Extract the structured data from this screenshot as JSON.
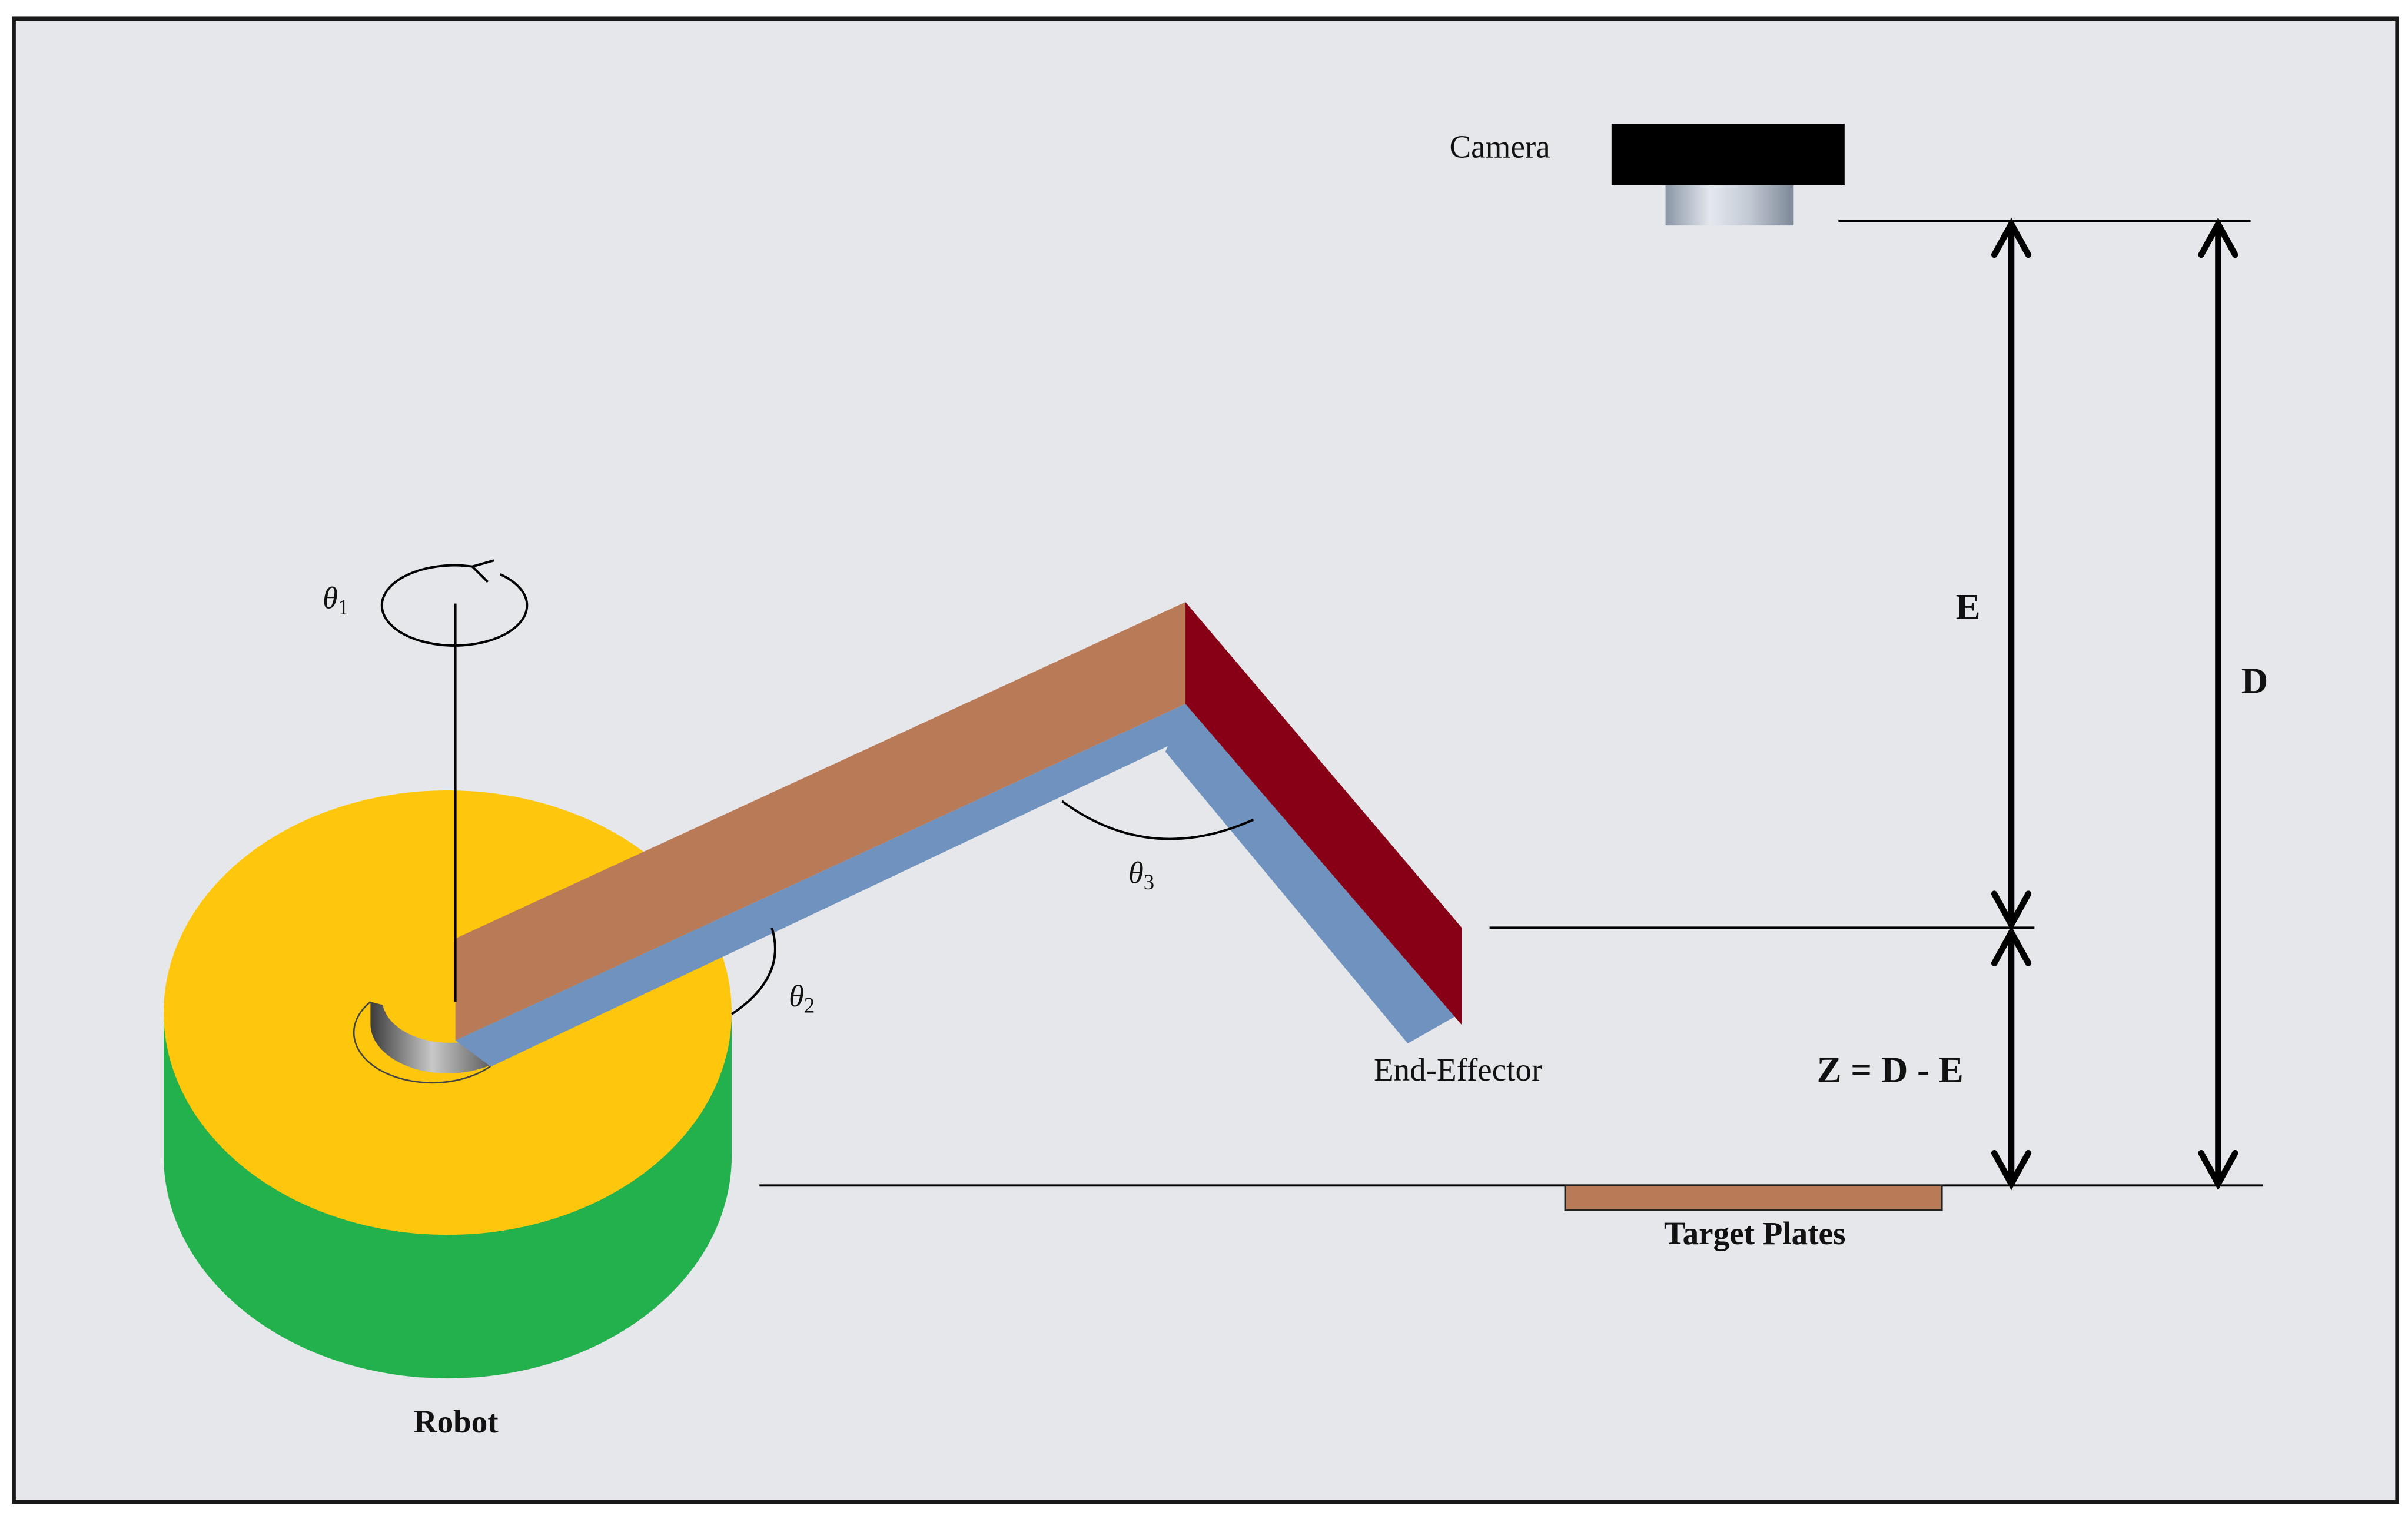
{
  "labels": {
    "camera": "Camera",
    "end_effector": "End-Effector",
    "robot": "Robot",
    "target_plates": "Target Plates",
    "dim_e": "E",
    "dim_d": "D",
    "formula": "Z = D - E",
    "theta1": {
      "symbol": "θ",
      "sub": "1"
    },
    "theta2": {
      "symbol": "θ",
      "sub": "2"
    },
    "theta3": {
      "symbol": "θ",
      "sub": "3"
    }
  },
  "colors": {
    "background": "#e6e7ea",
    "frame": "#1a1a1a",
    "base_top": "#fec60c",
    "base_side": "#22b14c",
    "arm_top": "#b97a57",
    "arm_underside": "#7092be",
    "arm_end_face": "#880015",
    "target_plate": "#b97a57",
    "camera_body": "#000000"
  }
}
